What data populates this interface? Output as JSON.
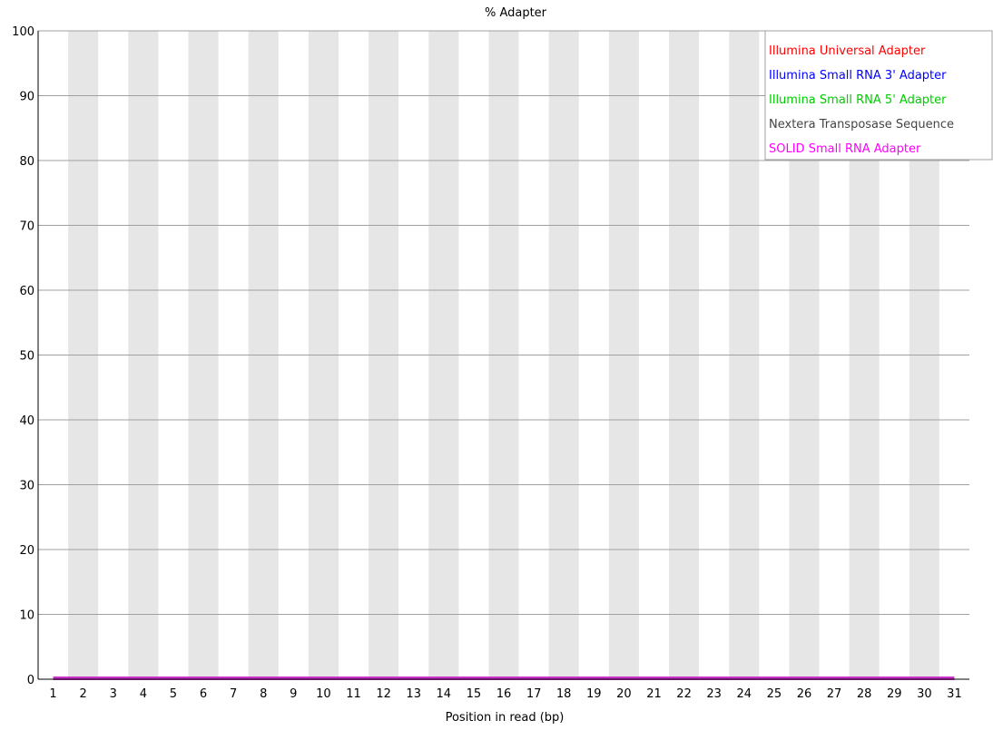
{
  "chart_data": {
    "type": "line",
    "title": "% Adapter",
    "xlabel": "Position in read (bp)",
    "ylabel": "",
    "x": [
      1,
      2,
      3,
      4,
      5,
      6,
      7,
      8,
      9,
      10,
      11,
      12,
      13,
      14,
      15,
      16,
      17,
      18,
      19,
      20,
      21,
      22,
      23,
      24,
      25,
      26,
      27,
      28,
      29,
      30,
      31
    ],
    "x_tick_labels": [
      "1",
      "2",
      "3",
      "4",
      "5",
      "6",
      "7",
      "8",
      "9",
      "10",
      "11",
      "12",
      "13",
      "14",
      "15",
      "16",
      "17",
      "18",
      "19",
      "20",
      "21",
      "22",
      "23",
      "24",
      "25",
      "26",
      "27",
      "28",
      "29",
      "30",
      "31"
    ],
    "ylim": [
      0,
      100
    ],
    "y_ticks": [
      0,
      10,
      20,
      30,
      40,
      50,
      60,
      70,
      80,
      90,
      100
    ],
    "grid": true,
    "legend_position": "top-right",
    "series": [
      {
        "name": "Illumina Universal Adapter",
        "color": "#ff0000",
        "values": [
          0,
          0,
          0,
          0,
          0,
          0,
          0,
          0,
          0,
          0,
          0,
          0,
          0,
          0,
          0,
          0,
          0,
          0,
          0,
          0,
          0,
          0,
          0,
          0,
          0,
          0,
          0,
          0,
          0,
          0,
          0
        ]
      },
      {
        "name": "Illumina Small RNA 3' Adapter",
        "color": "#0000ff",
        "values": [
          0,
          0,
          0,
          0,
          0,
          0,
          0,
          0,
          0,
          0,
          0,
          0,
          0,
          0,
          0,
          0,
          0,
          0,
          0,
          0,
          0,
          0,
          0,
          0,
          0,
          0,
          0,
          0,
          0,
          0,
          0
        ]
      },
      {
        "name": "Illumina Small RNA 5' Adapter",
        "color": "#00cc00",
        "values": [
          0,
          0,
          0,
          0,
          0,
          0,
          0,
          0,
          0,
          0,
          0,
          0,
          0,
          0,
          0,
          0,
          0,
          0,
          0,
          0,
          0,
          0,
          0,
          0,
          0,
          0,
          0,
          0,
          0,
          0,
          0
        ]
      },
      {
        "name": "Nextera Transposase Sequence",
        "color": "#444444",
        "values": [
          0,
          0,
          0,
          0,
          0,
          0,
          0,
          0,
          0,
          0,
          0,
          0,
          0,
          0,
          0,
          0,
          0,
          0,
          0,
          0,
          0,
          0,
          0,
          0,
          0,
          0,
          0,
          0,
          0,
          0,
          0
        ]
      },
      {
        "name": "SOLID Small RNA Adapter",
        "color": "#ff00ff",
        "values": [
          0,
          0,
          0,
          0,
          0,
          0,
          0,
          0,
          0,
          0,
          0,
          0,
          0,
          0,
          0,
          0,
          0,
          0,
          0,
          0,
          0,
          0,
          0,
          0,
          0,
          0,
          0,
          0,
          0,
          0,
          0
        ]
      }
    ],
    "colors": {
      "band": "#e6e6e6",
      "gridline": "#a0a0a0",
      "axis": "#000000",
      "overlap_line": "#c832c8"
    }
  }
}
